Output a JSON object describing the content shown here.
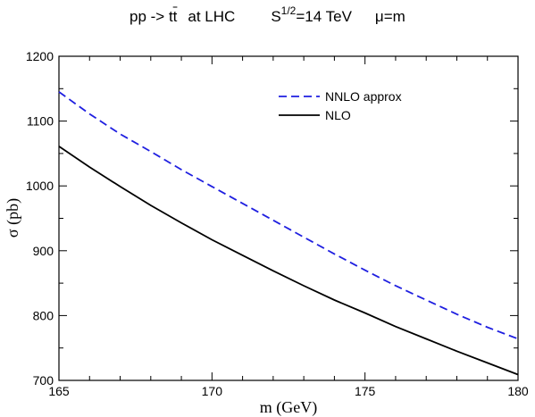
{
  "chart_data": {
    "type": "line",
    "title_parts": {
      "process": "pp -> t",
      "tbar": "t",
      "collider": "at  LHC",
      "energy_base": "S",
      "energy_exp": "1/2",
      "energy_rest": "=14 TeV",
      "scale": "μ=m"
    },
    "xlabel": "m (GeV)",
    "ylabel": "σ (pb)",
    "xlim": [
      165,
      180
    ],
    "ylim": [
      700,
      1200
    ],
    "xticks": [
      165,
      170,
      175,
      180
    ],
    "yticks": [
      700,
      800,
      900,
      1000,
      1100,
      1200
    ],
    "grid": false,
    "legend_position": "top-right",
    "series": [
      {
        "name": "NNLO approx",
        "style": "dashed",
        "color": "#1f1fe0",
        "x": [
          165,
          166,
          167,
          168,
          169,
          170,
          171,
          172,
          173,
          174,
          175,
          176,
          177,
          178,
          179,
          180
        ],
        "values": [
          1145,
          1111,
          1080,
          1053,
          1025,
          999,
          973,
          947,
          921,
          895,
          870,
          846,
          824,
          802,
          782,
          764
        ]
      },
      {
        "name": "NLO",
        "style": "solid",
        "color": "#000000",
        "x": [
          165,
          166,
          167,
          168,
          169,
          170,
          171,
          172,
          173,
          174,
          175,
          176,
          177,
          178,
          179,
          180
        ],
        "values": [
          1061,
          1029,
          999,
          970,
          943,
          917,
          893,
          869,
          846,
          824,
          804,
          783,
          764,
          745,
          727,
          709
        ]
      }
    ]
  }
}
